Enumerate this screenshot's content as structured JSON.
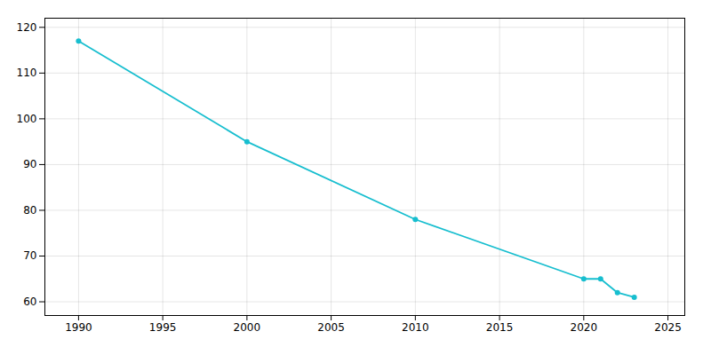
{
  "chart_data": {
    "type": "line",
    "x": [
      1990,
      2000,
      2010,
      2020,
      2021,
      2022,
      2023
    ],
    "values": [
      117,
      95,
      78,
      65,
      65,
      62,
      61
    ],
    "color": "#17BECF",
    "marker": "o",
    "xlim": [
      1988,
      2026
    ],
    "ylim": [
      57,
      122
    ],
    "xticks": [
      1990,
      1995,
      2000,
      2005,
      2010,
      2015,
      2020,
      2025
    ],
    "yticks": [
      60,
      70,
      80,
      90,
      100,
      110,
      120
    ],
    "grid": true
  }
}
